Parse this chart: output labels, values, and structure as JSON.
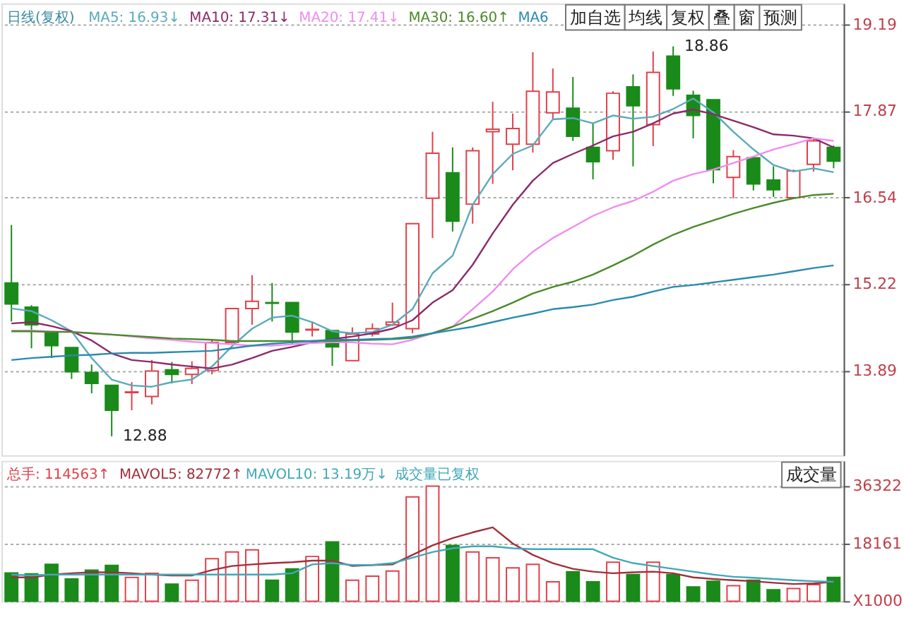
{
  "chart_data": [
    {
      "type": "candlestick",
      "title": "日线(复权)",
      "categories": [
        null,
        null,
        null,
        null,
        null,
        null,
        null,
        null,
        null,
        null,
        null,
        null,
        null,
        null,
        null,
        null,
        null,
        null,
        null,
        null,
        null,
        null,
        null,
        null,
        null,
        null,
        null,
        null,
        null,
        null,
        null,
        null,
        null,
        null,
        null,
        null,
        null,
        null,
        null,
        null,
        null,
        null
      ],
      "ohlc": [
        [
          15.23,
          16.12,
          14.64,
          14.91
        ],
        [
          14.86,
          14.89,
          14.23,
          14.59
        ],
        [
          14.46,
          14.46,
          14.08,
          14.27
        ],
        [
          14.24,
          14.24,
          13.76,
          13.87
        ],
        [
          13.86,
          13.98,
          13.54,
          13.69
        ],
        [
          13.66,
          13.66,
          12.88,
          13.28
        ],
        [
          13.55,
          13.71,
          13.28,
          13.56
        ],
        [
          13.49,
          14.05,
          13.37,
          13.88
        ],
        [
          13.9,
          14.02,
          13.69,
          13.83
        ],
        [
          13.83,
          14.03,
          13.68,
          13.92
        ],
        [
          13.89,
          14.36,
          13.83,
          14.32
        ],
        [
          14.32,
          14.84,
          14.3,
          14.84
        ],
        [
          14.84,
          15.35,
          14.59,
          14.95
        ],
        [
          14.93,
          15.23,
          14.64,
          14.92
        ],
        [
          14.93,
          14.93,
          14.29,
          14.48
        ],
        [
          14.51,
          14.64,
          14.41,
          14.52
        ],
        [
          14.5,
          14.5,
          13.96,
          14.25
        ],
        [
          14.04,
          14.55,
          14.04,
          14.45
        ],
        [
          14.45,
          14.61,
          14.41,
          14.53
        ],
        [
          14.59,
          14.93,
          14.57,
          14.63
        ],
        [
          14.53,
          16.14,
          14.46,
          16.14
        ],
        [
          16.53,
          17.55,
          15.92,
          17.22
        ],
        [
          16.92,
          17.31,
          16.02,
          16.18
        ],
        [
          16.44,
          17.31,
          16.14,
          17.26
        ],
        [
          17.55,
          18.01,
          16.75,
          17.59
        ],
        [
          17.36,
          17.83,
          16.96,
          17.6
        ],
        [
          17.36,
          18.77,
          17.23,
          18.17
        ],
        [
          17.84,
          18.52,
          17.74,
          18.16
        ],
        [
          17.91,
          18.39,
          17.41,
          17.48
        ],
        [
          17.31,
          17.69,
          16.82,
          17.09
        ],
        [
          17.26,
          18.17,
          17.12,
          18.14
        ],
        [
          18.24,
          18.43,
          17.02,
          17.95
        ],
        [
          17.66,
          18.78,
          17.33,
          18.46
        ],
        [
          18.71,
          18.86,
          18.1,
          18.21
        ],
        [
          18.11,
          18.18,
          17.45,
          17.8
        ],
        [
          18.04,
          18.04,
          16.76,
          16.97
        ],
        [
          16.85,
          17.27,
          16.53,
          17.17
        ],
        [
          17.15,
          17.17,
          16.65,
          16.75
        ],
        [
          16.81,
          17.02,
          16.55,
          16.66
        ],
        [
          16.54,
          16.97,
          16.54,
          16.95
        ],
        [
          17.05,
          17.44,
          16.94,
          17.41
        ],
        [
          17.31,
          17.34,
          16.99,
          17.1
        ]
      ],
      "colors": [
        "#1a8a1a",
        "#1a8a1a",
        "#1a8a1a",
        "#1a8a1a",
        "#1a8a1a",
        "#1a8a1a",
        "#e0404a",
        "#e0404a",
        "#1a8a1a",
        "#e0404a",
        "#e0404a",
        "#e0404a",
        "#e0404a",
        "#1a8a1a",
        "#1a8a1a",
        "#e0404a",
        "#1a8a1a",
        "#e0404a",
        "#e0404a",
        "#e0404a",
        "#e0404a",
        "#e0404a",
        "#1a8a1a",
        "#e0404a",
        "#e0404a",
        "#e0404a",
        "#e0404a",
        "#e0404a",
        "#1a8a1a",
        "#1a8a1a",
        "#e0404a",
        "#1a8a1a",
        "#e0404a",
        "#1a8a1a",
        "#1a8a1a",
        "#1a8a1a",
        "#e0404a",
        "#1a8a1a",
        "#1a8a1a",
        "#e0404a",
        "#e0404a",
        "#1a8a1a"
      ],
      "series": [
        {
          "name": "MA5: 16.93↓",
          "type": "line",
          "color": "#5aaabb",
          "values": [
            14.84,
            14.8,
            14.66,
            14.49,
            14.08,
            13.75,
            13.66,
            13.64,
            13.71,
            13.75,
            13.95,
            14.26,
            14.53,
            14.7,
            14.73,
            14.63,
            14.49,
            14.46,
            14.48,
            14.59,
            14.83,
            15.38,
            15.65,
            16.43,
            16.9,
            17.21,
            17.34,
            17.74,
            17.76,
            17.68,
            17.8,
            17.75,
            17.78,
            17.9,
            18.06,
            17.85,
            17.55,
            17.28,
            17.04,
            16.94,
            16.99,
            16.93
          ]
        },
        {
          "name": "MA10: 17.31↓",
          "type": "line",
          "color": "#8b2a6b",
          "values": [
            14.61,
            14.63,
            14.57,
            14.49,
            14.35,
            14.15,
            14.05,
            14.02,
            13.98,
            13.95,
            13.92,
            13.98,
            14.08,
            14.19,
            14.25,
            14.32,
            14.37,
            14.41,
            14.46,
            14.53,
            14.66,
            14.93,
            15.12,
            15.51,
            15.99,
            16.43,
            16.8,
            17.07,
            17.21,
            17.34,
            17.48,
            17.55,
            17.68,
            17.83,
            17.89,
            17.82,
            17.72,
            17.62,
            17.51,
            17.49,
            17.45,
            17.31
          ]
        },
        {
          "name": "MA20: 17.41↓",
          "type": "line",
          "color": "#f08cf0",
          "values": [
            14.5,
            14.5,
            14.49,
            14.48,
            14.46,
            14.44,
            14.41,
            14.38,
            14.36,
            14.33,
            14.31,
            14.29,
            14.27,
            14.27,
            14.29,
            14.31,
            14.32,
            14.32,
            14.3,
            14.29,
            14.36,
            14.46,
            14.56,
            14.83,
            15.1,
            15.44,
            15.71,
            15.92,
            16.09,
            16.26,
            16.39,
            16.49,
            16.63,
            16.8,
            16.9,
            16.97,
            17.07,
            17.17,
            17.28,
            17.36,
            17.45,
            17.41
          ]
        },
        {
          "name": "MA30: 16.60↑",
          "type": "line",
          "color": "#4a8a2a",
          "values": [
            14.49,
            14.49,
            14.48,
            14.48,
            14.46,
            14.44,
            14.42,
            14.4,
            14.38,
            14.37,
            14.36,
            14.34,
            14.34,
            14.34,
            14.34,
            14.34,
            14.34,
            14.35,
            14.36,
            14.37,
            14.39,
            14.46,
            14.56,
            14.68,
            14.8,
            14.93,
            15.07,
            15.17,
            15.25,
            15.36,
            15.5,
            15.65,
            15.82,
            15.97,
            16.09,
            16.19,
            16.29,
            16.38,
            16.46,
            16.53,
            16.58,
            16.6
          ]
        },
        {
          "name": "MA6",
          "type": "line",
          "color": "#2a8ab0",
          "values": [
            14.05,
            14.08,
            14.1,
            14.12,
            14.13,
            14.15,
            14.16,
            14.16,
            14.17,
            14.18,
            14.19,
            14.23,
            14.27,
            14.3,
            14.32,
            14.34,
            14.36,
            14.36,
            14.37,
            14.38,
            14.41,
            14.46,
            14.51,
            14.56,
            14.63,
            14.7,
            14.76,
            14.83,
            14.86,
            14.9,
            14.97,
            15.02,
            15.1,
            15.17,
            15.2,
            15.24,
            15.28,
            15.32,
            15.36,
            15.41,
            15.46,
            15.5
          ]
        }
      ],
      "ylim": [
        12.59,
        19.52
      ],
      "yticks": [
        13.89,
        15.22,
        16.54,
        17.87,
        19.19
      ],
      "grid": "y",
      "legend": "top left",
      "tick_labels": "y",
      "line_style": "solid",
      "marker": "none",
      "annotations": [
        "12.88",
        "18.86",
        "加自选",
        "均线",
        "复权",
        "叠",
        "窗",
        "预测"
      ]
    },
    {
      "type": "bar",
      "categories": [
        null,
        null,
        null,
        null,
        null,
        null,
        null,
        null,
        null,
        null,
        null,
        null,
        null,
        null,
        null,
        null,
        null,
        null,
        null,
        null,
        null,
        null,
        null,
        null,
        null,
        null,
        null,
        null,
        null,
        null,
        null,
        null,
        null,
        null,
        null,
        null,
        null,
        null,
        null,
        null,
        null,
        null
      ],
      "series": [
        {
          "name": "总手: 114563↑",
          "type": "bar",
          "color": "#e0404a",
          "values": [
            8900,
            8600,
            11600,
            7000,
            9800,
            11300,
            7500,
            8800,
            5400,
            6600,
            13400,
            15500,
            16200,
            6600,
            10200,
            14100,
            18700,
            6600,
            7900,
            9500,
            32900,
            36322,
            17600,
            15500,
            13700,
            10500,
            11600,
            6100,
            9300,
            6100,
            12300,
            8400,
            12300,
            8400,
            4500,
            6300,
            4900,
            6600,
            3600,
            4000,
            5200,
            7500
          ],
          "colors": [
            "#1a8a1a",
            "#1a8a1a",
            "#1a8a1a",
            "#1a8a1a",
            "#1a8a1a",
            "#1a8a1a",
            "#e0404a",
            "#e0404a",
            "#1a8a1a",
            "#e0404a",
            "#e0404a",
            "#e0404a",
            "#e0404a",
            "#1a8a1a",
            "#1a8a1a",
            "#e0404a",
            "#1a8a1a",
            "#e0404a",
            "#e0404a",
            "#e0404a",
            "#e0404a",
            "#e0404a",
            "#1a8a1a",
            "#e0404a",
            "#e0404a",
            "#e0404a",
            "#e0404a",
            "#e0404a",
            "#1a8a1a",
            "#1a8a1a",
            "#e0404a",
            "#1a8a1a",
            "#e0404a",
            "#1a8a1a",
            "#1a8a1a",
            "#1a8a1a",
            "#e0404a",
            "#1a8a1a",
            "#1a8a1a",
            "#e0404a",
            "#e0404a",
            "#1a8a1a"
          ]
        },
        {
          "name": "MAVOL5: 82772↑",
          "type": "line",
          "color": "#a0303a",
          "values": [
            7500,
            7500,
            8400,
            8800,
            9100,
            9100,
            8800,
            8400,
            8100,
            8100,
            9800,
            11100,
            11600,
            12000,
            12300,
            12800,
            12800,
            11100,
            11400,
            11600,
            14600,
            17600,
            19900,
            21700,
            23300,
            18200,
            14600,
            12000,
            10200,
            9300,
            8800,
            9100,
            9300,
            8800,
            7500,
            7000,
            6600,
            6300,
            5800,
            5400,
            5600,
            6100
          ]
        },
        {
          "name": "MAVOL10: 13.19万↓",
          "type": "line",
          "color": "#40a8b8",
          "values": [
            8400,
            8100,
            8400,
            8400,
            8400,
            8400,
            8400,
            8400,
            8400,
            8400,
            8400,
            8400,
            8400,
            8400,
            8800,
            11600,
            12000,
            11400,
            11400,
            12000,
            13700,
            15500,
            16700,
            17300,
            17300,
            16700,
            16400,
            16400,
            16400,
            16400,
            13700,
            12000,
            11100,
            10200,
            9300,
            8400,
            7700,
            7400,
            7000,
            6600,
            6300,
            6100
          ]
        }
      ],
      "ylim": [
        0,
        44300
      ],
      "yticks": [
        {
          "value": 0,
          "label": "X1000"
        },
        18161,
        36322
      ],
      "grid": "y",
      "legend": "top left",
      "tick_labels": "y",
      "line_style": "solid",
      "marker": "none",
      "annotations": [
        "成交量已复权",
        "成交量"
      ]
    }
  ]
}
